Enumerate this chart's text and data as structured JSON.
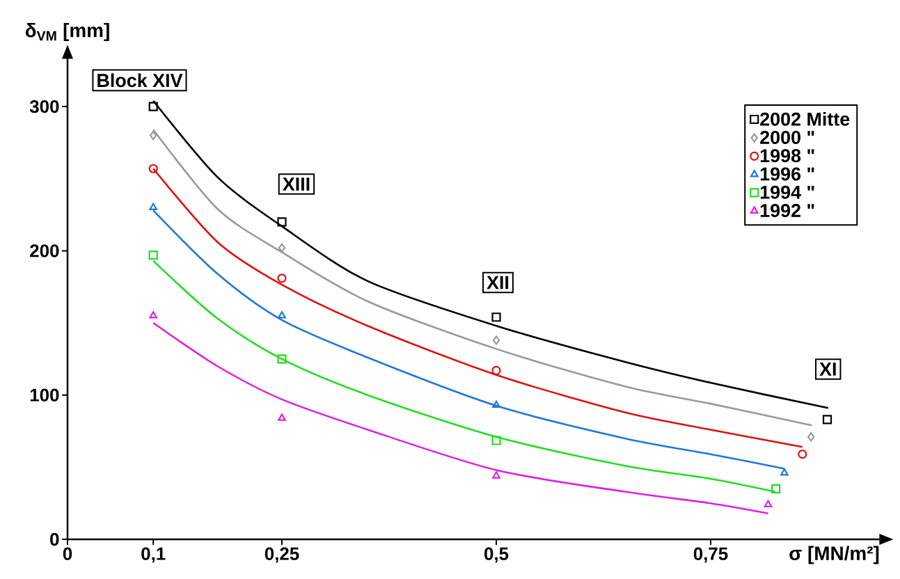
{
  "chart_data": {
    "type": "scatter",
    "xlabel": "σ [MN/m²]",
    "ylabel": "δ$_{VM}$ [mm]",
    "xlim": [
      0,
      0.95
    ],
    "ylim": [
      0,
      335
    ],
    "xticks": [
      {
        "value": 0,
        "label": "0"
      },
      {
        "value": 0.1,
        "label": "0,1"
      },
      {
        "value": 0.25,
        "label": "0,25"
      },
      {
        "value": 0.5,
        "label": "0,5"
      },
      {
        "value": 0.75,
        "label": "0,75"
      }
    ],
    "yticks": [
      0,
      100,
      200,
      300
    ],
    "grid": false,
    "legend": "top right",
    "annotations": [
      "Block XIV",
      "XIII",
      {
        "text": "XII",
        "x": 0.502,
        "y": 178
      },
      {
        "text": "XI",
        "x": 0.887,
        "y": 118
      }
    ],
    "series": [
      {
        "name": "2002  Mitte",
        "marker": "square",
        "color": "#000000",
        "x": [
          0.1,
          0.25,
          0.5,
          0.886
        ],
        "values": [
          300,
          220,
          154,
          83
        ]
      },
      {
        "name": "2000  \"",
        "marker": "diamond",
        "color": "#999999",
        "x": [
          0.1,
          0.25,
          0.5,
          0.867
        ],
        "values": [
          280,
          202,
          138,
          71
        ]
      },
      {
        "name": "1998  \"",
        "marker": "circle",
        "color": "#e01010",
        "x": [
          0.1,
          0.25,
          0.5,
          0.857
        ],
        "values": [
          257,
          181,
          117,
          59
        ]
      },
      {
        "name": "1996  \"",
        "marker": "triangle",
        "color": "#1f78d8",
        "x": [
          0.1,
          0.25,
          0.5,
          0.836
        ],
        "values": [
          230,
          155,
          93,
          46
        ]
      },
      {
        "name": "1994  \"",
        "marker": "square",
        "color": "#22dd22",
        "x": [
          0.1,
          0.25,
          0.5,
          0.826
        ],
        "values": [
          197,
          125,
          68.5,
          35
        ]
      },
      {
        "name": "1992  \"",
        "marker": "triangle",
        "color": "#dd22dd",
        "x": [
          0.1,
          0.25,
          0.5,
          0.817
        ],
        "values": [
          155,
          84,
          44,
          24
        ]
      },
      {
        "type": "line",
        "color": "#000000",
        "x": [
          0.1,
          0.175,
          0.25,
          0.35,
          0.5,
          0.65,
          0.75,
          0.887
        ],
        "values": [
          304,
          251,
          217,
          179,
          148,
          123,
          108.5,
          91
        ]
      },
      {
        "type": "line",
        "color": "#999999",
        "x": [
          0.1,
          0.175,
          0.25,
          0.35,
          0.5,
          0.65,
          0.75,
          0.868
        ],
        "values": [
          284,
          229,
          199,
          165,
          132,
          106,
          94,
          79
        ]
      },
      {
        "type": "line",
        "color": "#e01010",
        "x": [
          0.1,
          0.175,
          0.25,
          0.35,
          0.5,
          0.65,
          0.75,
          0.857
        ],
        "values": [
          257,
          206,
          176.5,
          148,
          114,
          88,
          76,
          64
        ]
      },
      {
        "type": "line",
        "color": "#1f78d8",
        "x": [
          0.1,
          0.175,
          0.25,
          0.35,
          0.5,
          0.65,
          0.75,
          0.836
        ],
        "values": [
          228,
          184,
          152,
          126,
          92.6,
          70,
          59,
          49
        ]
      },
      {
        "type": "line",
        "color": "#22dd22",
        "x": [
          0.1,
          0.175,
          0.25,
          0.35,
          0.5,
          0.65,
          0.75,
          0.825
        ],
        "values": [
          193,
          153,
          125,
          100,
          71,
          51,
          42,
          33
        ]
      },
      {
        "type": "line",
        "color": "#dd22dd",
        "x": [
          0.1,
          0.175,
          0.25,
          0.35,
          0.5,
          0.65,
          0.75,
          0.817
        ],
        "values": [
          150,
          120,
          97,
          76,
          48,
          33,
          25,
          18
        ]
      }
    ]
  }
}
